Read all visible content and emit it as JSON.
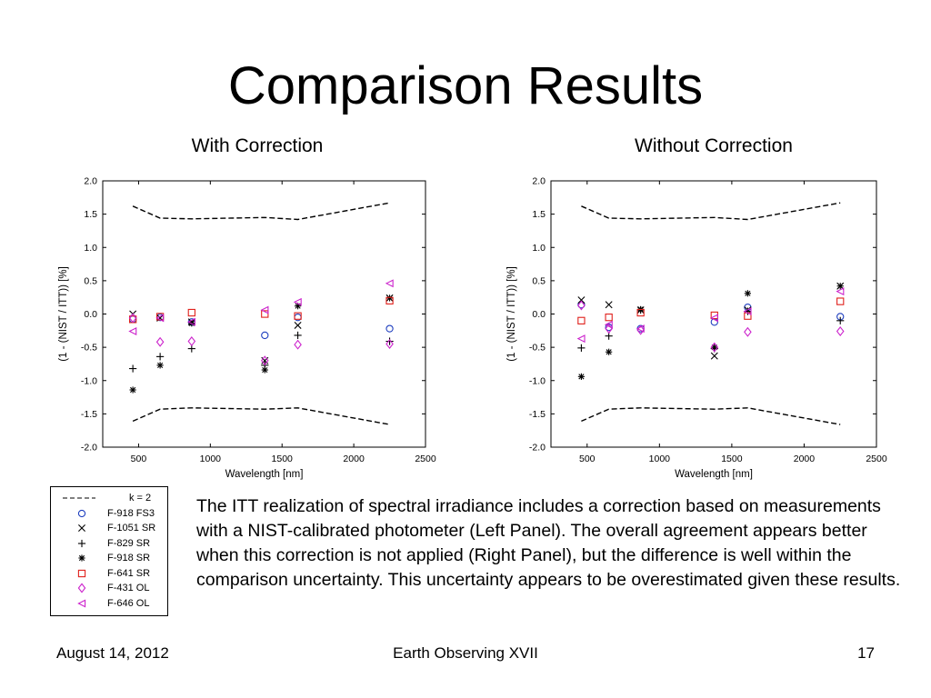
{
  "slide": {
    "title": "Comparison Results",
    "body": "The ITT realization of spectral irradiance includes a correction based on measurements with a NIST-calibrated photometer (Left Panel). The overall agreement appears better when this correction is not applied (Right Panel), but the difference is well within the comparison uncertainty. This uncertainty appears to be overestimated given these results.",
    "footer": {
      "date": "August 14, 2012",
      "event": "Earth Observing XVII",
      "page": "17"
    }
  },
  "legend": [
    {
      "label": "k = 2",
      "marker": "dashed-line",
      "color": "#000000"
    },
    {
      "label": "F-918 FS3",
      "marker": "circle",
      "color": "#1f3fbf"
    },
    {
      "label": "F-1051 SR",
      "marker": "x",
      "color": "#000000"
    },
    {
      "label": "F-829 SR",
      "marker": "plus",
      "color": "#000000"
    },
    {
      "label": "F-918 SR",
      "marker": "star",
      "color": "#000000"
    },
    {
      "label": "F-641 SR",
      "marker": "square",
      "color": "#e0201b"
    },
    {
      "label": "F-431 OL",
      "marker": "diamond",
      "color": "#cc22cc"
    },
    {
      "label": "F-646 OL",
      "marker": "triangle-left",
      "color": "#cc22cc"
    }
  ],
  "chart_data": [
    {
      "type": "scatter",
      "panel_title": "With Correction",
      "xlabel": "Wavelength [nm]",
      "ylabel": "(1 - (NIST / ITT)) [%]",
      "xlim": [
        250,
        2500
      ],
      "ylim": [
        -2.0,
        2.0
      ],
      "xticks": [
        "500",
        "1000",
        "1500",
        "2000",
        "2500"
      ],
      "yticks": [
        "2.0",
        "1.5",
        "1.0",
        "0.5",
        "0.0",
        "-0.5",
        "-1.0",
        "-1.5",
        "-2.0"
      ],
      "grid": false,
      "k2_upper": {
        "x": [
          460,
          650,
          870,
          1380,
          1610,
          2250
        ],
        "y": [
          1.62,
          1.44,
          1.43,
          1.45,
          1.42,
          1.67
        ]
      },
      "k2_lower": {
        "x": [
          460,
          650,
          870,
          1380,
          1610,
          2250
        ],
        "y": [
          -1.61,
          -1.43,
          -1.41,
          -1.43,
          -1.41,
          -1.66
        ]
      },
      "series": [
        {
          "name": "F-918 FS3",
          "x": [
            460,
            650,
            870,
            1380,
            1610,
            2250
          ],
          "y": [
            -0.08,
            -0.05,
            -0.12,
            -0.32,
            -0.05,
            -0.22
          ]
        },
        {
          "name": "F-1051 SR",
          "x": [
            460,
            650,
            870,
            1380,
            1610,
            2250
          ],
          "y": [
            0.0,
            -0.06,
            -0.12,
            -0.7,
            -0.17,
            0.24
          ]
        },
        {
          "name": "F-829 SR",
          "x": [
            460,
            650,
            870,
            1380,
            1610,
            2250
          ],
          "y": [
            -0.82,
            -0.64,
            -0.52,
            -0.77,
            -0.32,
            -0.41
          ]
        },
        {
          "name": "F-918 SR",
          "x": [
            460,
            650,
            870,
            1380,
            1610,
            2250
          ],
          "y": [
            -1.14,
            -0.77,
            -0.14,
            -0.84,
            0.12,
            0.24
          ]
        },
        {
          "name": "F-641 SR",
          "x": [
            460,
            650,
            870,
            1380,
            1610,
            2250
          ],
          "y": [
            -0.08,
            -0.04,
            0.02,
            0.0,
            -0.03,
            0.2
          ]
        },
        {
          "name": "F-431 OL",
          "x": [
            460,
            650,
            870,
            1380,
            1610,
            2250
          ],
          "y": [
            -0.06,
            -0.42,
            -0.41,
            -0.7,
            -0.46,
            -0.45
          ]
        },
        {
          "name": "F-646 OL",
          "x": [
            460,
            650,
            870,
            1380,
            1610,
            2250
          ],
          "y": [
            -0.26,
            -0.06,
            -0.12,
            0.06,
            0.18,
            0.46
          ]
        }
      ]
    },
    {
      "type": "scatter",
      "panel_title": "Without Correction",
      "xlabel": "Wavelength [nm]",
      "ylabel": "(1 - (NIST / ITT)) [%]",
      "xlim": [
        250,
        2500
      ],
      "ylim": [
        -2.0,
        2.0
      ],
      "xticks": [
        "500",
        "1000",
        "1500",
        "2000",
        "2500"
      ],
      "yticks": [
        "2.0",
        "1.5",
        "1.0",
        "0.5",
        "0.0",
        "-0.5",
        "-1.0",
        "-1.5",
        "-2.0"
      ],
      "grid": false,
      "k2_upper": {
        "x": [
          460,
          650,
          870,
          1380,
          1610,
          2250
        ],
        "y": [
          1.62,
          1.44,
          1.43,
          1.45,
          1.42,
          1.67
        ]
      },
      "k2_lower": {
        "x": [
          460,
          650,
          870,
          1380,
          1610,
          2250
        ],
        "y": [
          -1.61,
          -1.43,
          -1.41,
          -1.43,
          -1.41,
          -1.66
        ]
      },
      "series": [
        {
          "name": "F-918 FS3",
          "x": [
            460,
            650,
            870,
            1380,
            1610,
            2250
          ],
          "y": [
            0.14,
            -0.2,
            -0.22,
            -0.12,
            0.1,
            -0.04
          ]
        },
        {
          "name": "F-1051 SR",
          "x": [
            460,
            650,
            870,
            1380,
            1610,
            2250
          ],
          "y": [
            0.21,
            0.14,
            0.06,
            -0.63,
            0.06,
            0.42
          ]
        },
        {
          "name": "F-829 SR",
          "x": [
            460,
            650,
            870,
            1380,
            1610,
            2250
          ],
          "y": [
            -0.51,
            -0.33,
            0.06,
            -0.52,
            0.04,
            -0.1
          ]
        },
        {
          "name": "F-918 SR",
          "x": [
            460,
            650,
            870,
            1380,
            1610,
            2250
          ],
          "y": [
            -0.94,
            -0.57,
            0.07,
            -0.5,
            0.31,
            0.42
          ]
        },
        {
          "name": "F-641 SR",
          "x": [
            460,
            650,
            870,
            1380,
            1610,
            2250
          ],
          "y": [
            -0.1,
            -0.05,
            0.02,
            -0.02,
            -0.03,
            0.19
          ]
        },
        {
          "name": "F-431 OL",
          "x": [
            460,
            650,
            870,
            1380,
            1610,
            2250
          ],
          "y": [
            0.13,
            -0.22,
            -0.24,
            -0.5,
            -0.27,
            -0.26
          ]
        },
        {
          "name": "F-646 OL",
          "x": [
            460,
            650,
            870,
            1380,
            1610,
            2250
          ],
          "y": [
            -0.37,
            -0.16,
            -0.22,
            -0.06,
            0.04,
            0.34
          ]
        }
      ]
    }
  ]
}
